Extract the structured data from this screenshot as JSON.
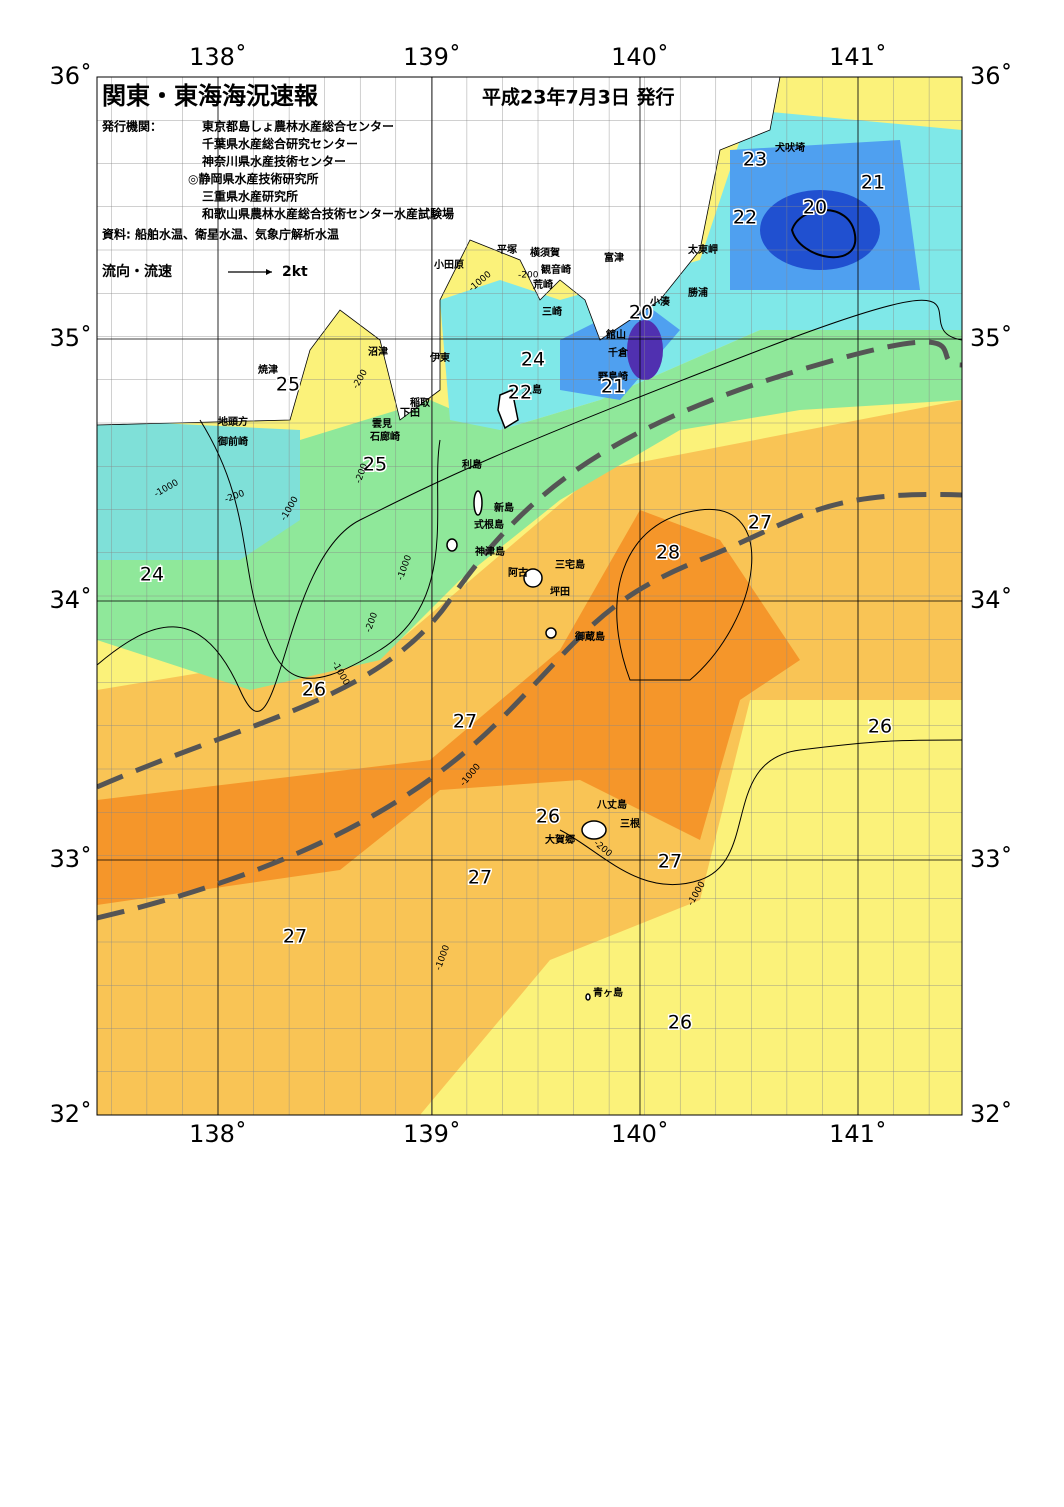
{
  "header": {
    "title": "関東・東海海況速報",
    "date": "平成23年7月3日 発行",
    "issuer_label": "発行機関：",
    "issuers": [
      "東京都島しょ農林水産総合センター",
      "千葉県水産総合研究センター",
      "神奈川県水産技術センター",
      "◎静岡県水産技術研究所",
      "三重県水産研究所",
      "和歌山県農林水産総合技術センター水産試験場"
    ],
    "sources": "資料: 船舶水温、衛星水温、気象庁解析水温",
    "legend_label": "流向・流速",
    "legend_speed": "2kt"
  },
  "axes": {
    "top": [
      "138˚",
      "139˚",
      "140˚",
      "141˚"
    ],
    "bottom": [
      "138˚",
      "139˚",
      "140˚",
      "141˚"
    ],
    "left": [
      "36˚",
      "35˚",
      "34˚",
      "33˚",
      "32˚"
    ],
    "right": [
      "36˚",
      "35˚",
      "34˚",
      "33˚",
      "32˚"
    ]
  },
  "place_names": [
    "犬吠埼",
    "太東岬",
    "勝浦",
    "小湊",
    "館山",
    "千倉",
    "野島崎",
    "富津",
    "観音崎",
    "横須賀",
    "平塚",
    "荒崎",
    "三崎",
    "小田原",
    "沼津",
    "伊東",
    "焼津",
    "稲取",
    "下田",
    "雲見",
    "石廊崎",
    "地頭方",
    "御前崎",
    "大島",
    "利島",
    "新島",
    "式根島",
    "神津島",
    "三宅島",
    "阿古",
    "坪田",
    "御蔵島",
    "八丈島",
    "三根",
    "大賀郷",
    "青ヶ島"
  ],
  "temperature_labels": [
    "23",
    "21",
    "20",
    "22",
    "20",
    "24",
    "22",
    "21",
    "25",
    "25",
    "24",
    "28",
    "27",
    "26",
    "27",
    "26",
    "26",
    "27",
    "27",
    "27",
    "26"
  ],
  "depth_labels": [
    "-200",
    "-1000",
    "-200",
    "-1000",
    "-200",
    "-1000",
    "-200",
    "-1000",
    "-200",
    "-1000",
    "-1000",
    "-1000",
    "-200",
    "-1000"
  ]
}
